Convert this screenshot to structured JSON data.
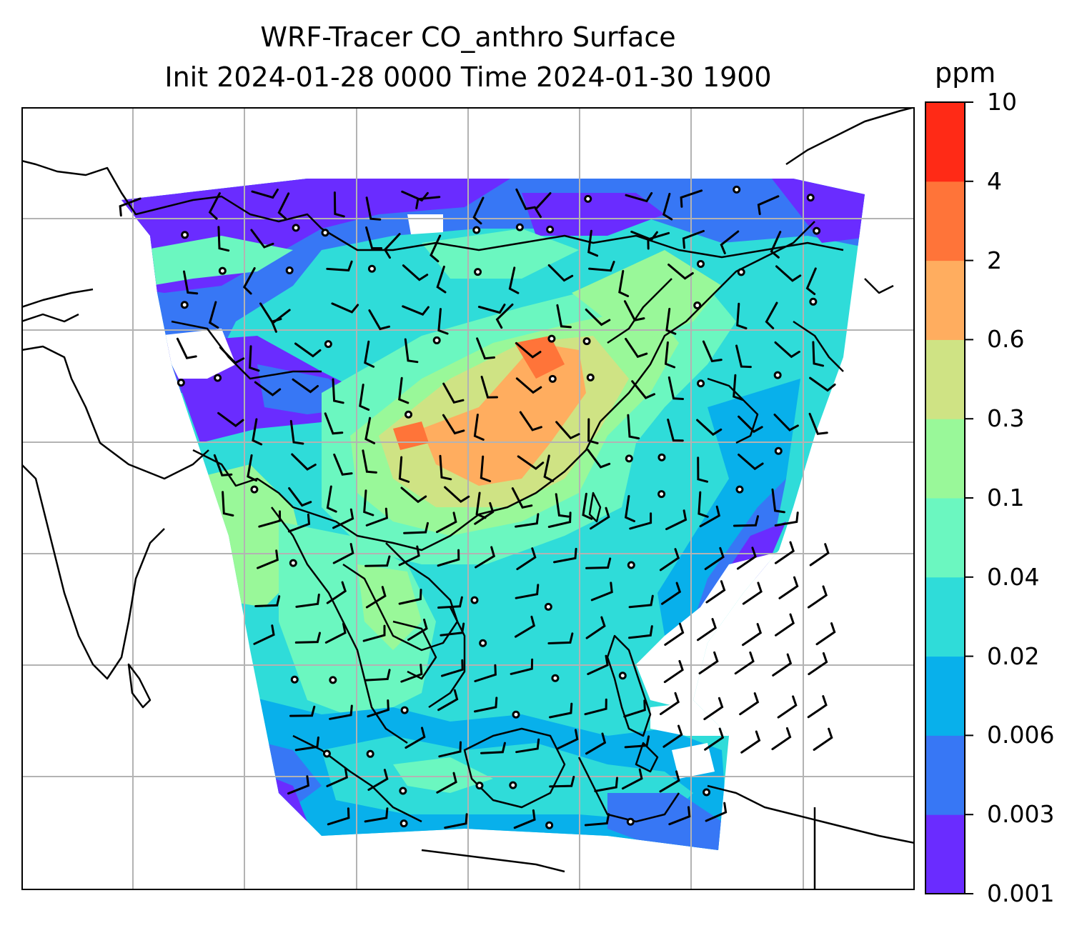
{
  "title": {
    "line1": "WRF-Tracer CO_anthro Surface",
    "line2": "Init 2024-01-28 0000 Time 2024-01-30 1900"
  },
  "colorbar": {
    "unit": "ppm",
    "levels": [
      "0.001",
      "0.003",
      "0.006",
      "0.02",
      "0.04",
      "0.1",
      "0.3",
      "0.6",
      "2",
      "4",
      "10"
    ],
    "colors": [
      "#6a2cff",
      "#3777f5",
      "#08b0eb",
      "#2fdcd9",
      "#6bf7c0",
      "#99f899",
      "#cfe384",
      "#ffad5f",
      "#ff7439",
      "#ff2a16"
    ]
  },
  "map": {
    "background": "#ffffff",
    "gridline_color": "#b3b3b3",
    "coastline_color": "#000000",
    "wind_barb_color": "#000000",
    "calm_marker": "circle"
  }
}
